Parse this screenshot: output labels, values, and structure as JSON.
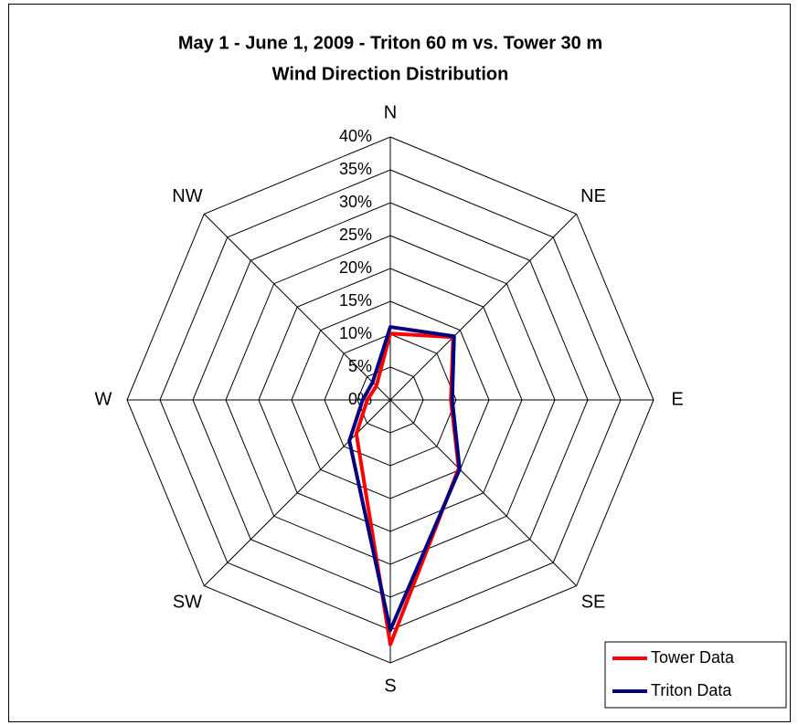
{
  "chart_data": {
    "type": "radar",
    "title": "May 1 - June 1, 2009 - Triton 60 m vs. Tower 30 m",
    "subtitle": "Wind Direction Distribution",
    "categories": [
      "N",
      "NE",
      "E",
      "SE",
      "S",
      "SW",
      "W",
      "NW"
    ],
    "series": [
      {
        "name": "Tower Data",
        "color": "#ff0000",
        "values": [
          10.1,
          13.5,
          9.2,
          14.7,
          37.2,
          7.3,
          3.5,
          3.0
        ]
      },
      {
        "name": "Triton Data",
        "color": "#000080",
        "values": [
          11.1,
          13.7,
          9.4,
          14.9,
          35.0,
          8.8,
          4.2,
          3.8
        ]
      }
    ],
    "ylim": [
      0,
      40
    ],
    "yticks": [
      {
        "value": 0,
        "label": "0%"
      },
      {
        "value": 5,
        "label": "5%"
      },
      {
        "value": 10,
        "label": "10%"
      },
      {
        "value": 15,
        "label": "15%"
      },
      {
        "value": 20,
        "label": "20%"
      },
      {
        "value": 25,
        "label": "25%"
      },
      {
        "value": 30,
        "label": "30%"
      },
      {
        "value": 35,
        "label": "35%"
      },
      {
        "value": 40,
        "label": "40%"
      }
    ],
    "grid": true,
    "legend": "bottom-right"
  }
}
